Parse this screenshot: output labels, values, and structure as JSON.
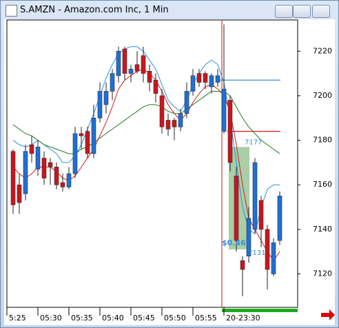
{
  "chart_data": {
    "type": "candlestick",
    "title": "S.AMZN - Amazon.com Inc, 1 Min",
    "categories": [
      null,
      null,
      null,
      null,
      null,
      null,
      null,
      null,
      null,
      null,
      null,
      null,
      null,
      null,
      null,
      null,
      null,
      null,
      null,
      null,
      null,
      null,
      null,
      null,
      null,
      null,
      null,
      null,
      null,
      null,
      null,
      null,
      null,
      null,
      null,
      null,
      null,
      null,
      null,
      null,
      null,
      null,
      null,
      null
    ],
    "xticks": [
      {
        "value": -1,
        "label": "5:25"
      },
      {
        "value": 4,
        "label": "05:30"
      },
      {
        "value": 9,
        "label": "05:35"
      },
      {
        "value": 14,
        "label": "05:40"
      },
      {
        "value": 19,
        "label": "05:45"
      },
      {
        "value": 24,
        "label": "05:50"
      },
      {
        "value": 29,
        "label": "05:55"
      },
      {
        "value": 34,
        "label": "20-23:30"
      }
    ],
    "open": [
      7175,
      7160,
      7156,
      7178,
      7167,
      7172,
      7170,
      7168,
      7161,
      7159,
      7165,
      7183,
      7184,
      7174,
      7190,
      7196,
      7202,
      7209,
      7221,
      7210,
      7214,
      7218,
      7211,
      7207,
      7200,
      7189,
      7189,
      7186,
      7192,
      7202,
      7210,
      7210,
      7204,
      7206,
      7184,
      7198,
      7164,
      7126,
      7128,
      7140,
      7153,
      7140,
      7120,
      7135
    ],
    "high": [
      7176,
      7165,
      7178,
      7182,
      7180,
      7175,
      7172,
      7170,
      7165,
      7168,
      7186,
      7186,
      7186,
      7196,
      7206,
      7206,
      7212,
      7222,
      7222,
      7214,
      7220,
      7222,
      7214,
      7210,
      7203,
      7192,
      7190,
      7194,
      7206,
      7212,
      7212,
      7211,
      7210,
      7212,
      7232,
      7200,
      7168,
      7128,
      7150,
      7172,
      7155,
      7142,
      7136,
      7157
    ],
    "low": [
      7147,
      7147,
      7153,
      7170,
      7164,
      7160,
      7160,
      7158,
      7157,
      7158,
      7163,
      7176,
      7172,
      7172,
      7188,
      7192,
      7198,
      7206,
      7207,
      7206,
      7210,
      7206,
      7202,
      7197,
      7183,
      7182,
      7180,
      7184,
      7190,
      7200,
      7204,
      7203,
      7201,
      7204,
      7183,
      7166,
      7130,
      7110,
      7125,
      7138,
      7132,
      7113,
      7119,
      7133
    ],
    "close": [
      7151,
      7152,
      7175,
      7174,
      7177,
      7163,
      7168,
      7160,
      7159,
      7165,
      7183,
      7182,
      7174,
      7190,
      7202,
      7202,
      7210,
      7220,
      7210,
      7212,
      7211,
      7210,
      7206,
      7201,
      7186,
      7185,
      7186,
      7192,
      7202,
      7209,
      7206,
      7206,
      7209,
      7209,
      7203,
      7170,
      7135,
      7122,
      7145,
      7170,
      7140,
      7122,
      7134,
      7155
    ],
    "up_color": "#1f6fd6",
    "down_color": "#c8161c",
    "series": [
      {
        "color": "#2a8fe0",
        "values": [
          7180,
          7178,
          7177,
          7178,
          7180,
          7178,
          7176,
          7174,
          7170,
          7170,
          7173,
          7178,
          7185,
          7192,
          7200,
          7208,
          7214,
          7219,
          7221,
          7222,
          7222,
          7220,
          7216,
          7212,
          7205,
          7198,
          7195,
          7193,
          7198,
          7205,
          7210,
          7214,
          7216,
          7214,
          7206,
          7190,
          7170,
          7150,
          7140,
          7138,
          7150,
          7158,
          7160,
          7160
        ]
      },
      {
        "color": "#d41a1a",
        "values": [
          7168,
          7165,
          7163,
          7165,
          7168,
          7168,
          7168,
          7166,
          7163,
          7162,
          7164,
          7168,
          7172,
          7176,
          7182,
          7188,
          7195,
          7203,
          7207,
          7209,
          7211,
          7212,
          7210,
          7207,
          7202,
          7196,
          7192,
          7189,
          7192,
          7197,
          7201,
          7204,
          7205,
          7203,
          7200,
          7193,
          7178,
          7160,
          7145,
          7140,
          7135,
          7130,
          7126,
          7130
        ]
      },
      {
        "color": "#1f7a1f",
        "values": [
          7187,
          7185,
          7183,
          7182,
          7180,
          7178,
          7177,
          7176,
          7175,
          7174,
          7174,
          7176,
          7177,
          7179,
          7181,
          7183,
          7185,
          7187,
          7189,
          7191,
          7193,
          7195,
          7196,
          7196,
          7195,
          7193,
          7192,
          7192,
          7194,
          7196,
          7198,
          7200,
          7202,
          7202,
          7202,
          7200,
          7195,
          7190,
          7186,
          7183,
          7180,
          7178,
          7176,
          7174
        ]
      }
    ],
    "levels": [
      {
        "value": 7207,
        "color": "#3a8fdc"
      },
      {
        "value": 7184,
        "color": "#d41a1a"
      }
    ],
    "annotations": [
      {
        "text": "7177",
        "value": 7177
      },
      {
        "text": "7131",
        "value": 7131
      }
    ],
    "profit_label": "$0.46",
    "ylim": [
      7105,
      7234
    ],
    "yticks": [
      7120,
      7140,
      7160,
      7180,
      7200,
      7220
    ]
  }
}
